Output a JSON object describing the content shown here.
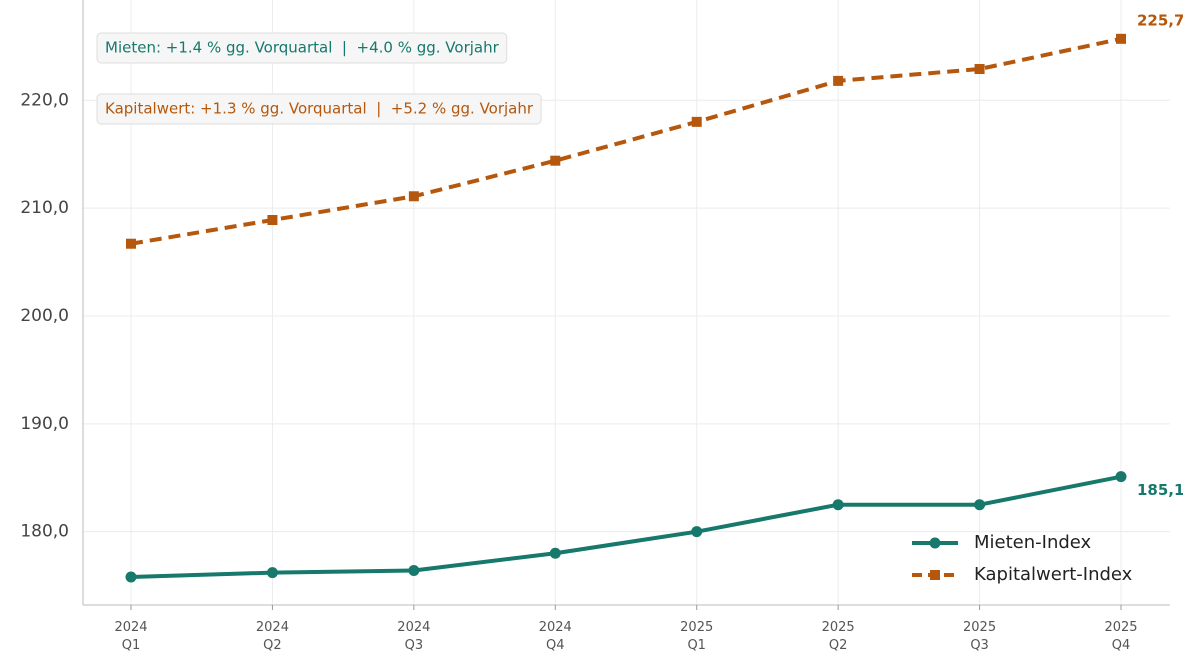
{
  "chart_data": {
    "type": "line",
    "categories": [
      [
        "2024",
        "Q1"
      ],
      [
        "2024",
        "Q2"
      ],
      [
        "2024",
        "Q3"
      ],
      [
        "2024",
        "Q4"
      ],
      [
        "2025",
        "Q1"
      ],
      [
        "2025",
        "Q2"
      ],
      [
        "2025",
        "Q3"
      ],
      [
        "2025",
        "Q4"
      ]
    ],
    "series": [
      {
        "name": "Mieten-Index",
        "color": "#17786c",
        "dash": false,
        "marker": "circle",
        "values": [
          175.8,
          176.2,
          176.4,
          178.0,
          180.0,
          182.5,
          182.5,
          185.1
        ],
        "end_label": "185,1"
      },
      {
        "name": "Kapitalwert-Index",
        "color": "#b5570c",
        "dash": true,
        "marker": "square",
        "values": [
          206.7,
          208.9,
          211.1,
          214.4,
          218.0,
          221.8,
          222.9,
          225.7
        ],
        "end_label": "225,7"
      }
    ],
    "ylim": [
      173.2,
      229.3
    ],
    "yticks": [
      {
        "value": 180,
        "label": "180,0"
      },
      {
        "value": 190,
        "label": "190,0"
      },
      {
        "value": 200,
        "label": "200,0"
      },
      {
        "value": 210,
        "label": "210,0"
      },
      {
        "value": 220,
        "label": "220,0"
      }
    ],
    "grid": true,
    "legend": "lower right",
    "annotations": [
      {
        "text": "Mieten: +1.4 % gg. Vorquartal  |  +4.0 % gg. Vorjahr",
        "color": "#17786c"
      },
      {
        "text": "Kapitalwert: +1.3 % gg. Vorquartal  |  +5.2 % gg. Vorjahr",
        "color": "#b5570c"
      }
    ]
  }
}
